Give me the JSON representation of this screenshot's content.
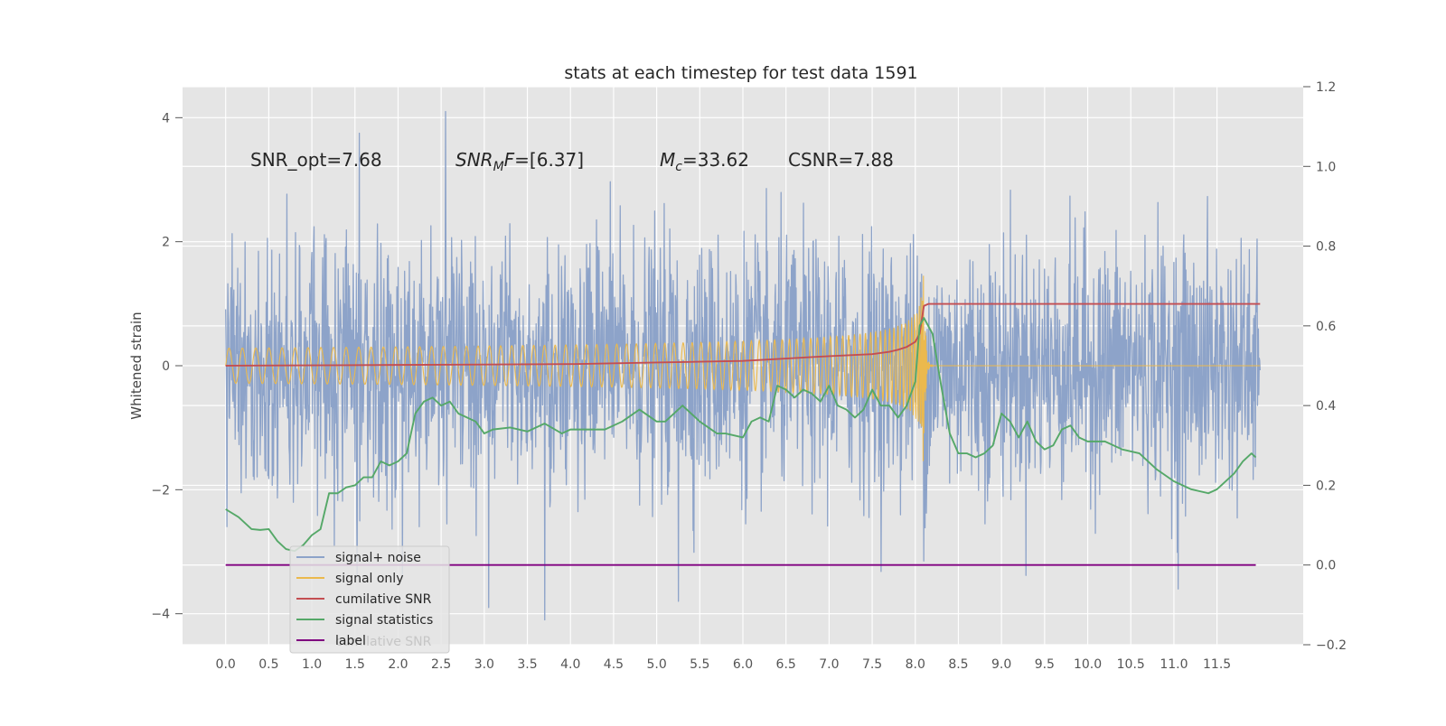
{
  "chart_data": {
    "type": "line",
    "title": "stats at each timestep for test data 1591",
    "ylabel": "Whitened strain",
    "xlabel": "",
    "grid": true,
    "legend_position": "lower-left",
    "xlim": [
      -0.5,
      12.5
    ],
    "ylim_left": [
      -4.5,
      4.5
    ],
    "ylim_right": [
      -0.2,
      1.2
    ],
    "x_ticks": [
      "0.0",
      "0.5",
      "1.0",
      "1.5",
      "2.0",
      "2.5",
      "3.0",
      "3.5",
      "4.0",
      "4.5",
      "5.0",
      "5.5",
      "6.0",
      "6.5",
      "7.0",
      "7.5",
      "8.0",
      "8.5",
      "9.0",
      "9.5",
      "10.0",
      "10.5",
      "11.0",
      "11.5"
    ],
    "y_ticks_left": [
      "−4",
      "−2",
      "0",
      "2",
      "4"
    ],
    "y_ticks_right": [
      "−0.2",
      "0.0",
      "0.2",
      "0.4",
      "0.6",
      "0.8",
      "1.0",
      "1.2"
    ],
    "annotations": {
      "snr_opt": "SNR_opt=7.68",
      "snr_mf_sym": "SNR",
      "snr_mf_sub": "M",
      "snr_mf_f": "F",
      "snr_mf_val": "=[6.37]",
      "mc_sym": "M",
      "mc_sub": "c",
      "mc_val": "=33.62",
      "csnr": "CSNR=7.88"
    },
    "series": [
      {
        "name": "signal+ noise",
        "axis": "left",
        "color": "#8da3c9",
        "kind": "noise",
        "x_range": [
          0.0,
          12.0
        ],
        "amplitude_std": 1.0,
        "peaks": [
          [
            1.55,
            3.75
          ],
          [
            2.55,
            4.1
          ],
          [
            3.7,
            -4.1
          ],
          [
            3.05,
            -3.9
          ],
          [
            5.25,
            -3.8
          ],
          [
            11.05,
            -3.6
          ],
          [
            8.1,
            -3.15
          ]
        ]
      },
      {
        "name": "signal only",
        "axis": "left",
        "color": "#ebb94d",
        "kind": "chirp",
        "merger_time": 8.1,
        "peak_amplitude": 1.9
      },
      {
        "name": "cumilative SNR",
        "axis": "right",
        "color": "#c44e52",
        "x": [
          0.0,
          1.0,
          2.0,
          3.0,
          4.0,
          5.0,
          5.5,
          6.0,
          6.5,
          7.0,
          7.5,
          7.7,
          7.8,
          7.9,
          8.0,
          8.05,
          8.1,
          8.15,
          9.0,
          10.0,
          11.0,
          12.0
        ],
        "values": [
          0.5,
          0.501,
          0.502,
          0.503,
          0.504,
          0.508,
          0.51,
          0.512,
          0.518,
          0.524,
          0.529,
          0.535,
          0.54,
          0.547,
          0.56,
          0.58,
          0.65,
          0.655,
          0.655,
          0.655,
          0.655,
          0.655
        ]
      },
      {
        "name": "signal statistics",
        "axis": "right",
        "color": "#55a868",
        "x": [
          0.0,
          0.15,
          0.3,
          0.4,
          0.5,
          0.6,
          0.7,
          0.8,
          0.9,
          1.0,
          1.1,
          1.2,
          1.3,
          1.4,
          1.5,
          1.6,
          1.7,
          1.8,
          1.9,
          2.0,
          2.1,
          2.2,
          2.3,
          2.4,
          2.5,
          2.6,
          2.7,
          2.8,
          2.9,
          3.0,
          3.1,
          3.3,
          3.5,
          3.7,
          3.9,
          4.0,
          4.2,
          4.4,
          4.6,
          4.8,
          5.0,
          5.1,
          5.3,
          5.5,
          5.7,
          5.8,
          6.0,
          6.1,
          6.2,
          6.3,
          6.4,
          6.5,
          6.6,
          6.7,
          6.8,
          6.9,
          7.0,
          7.1,
          7.2,
          7.3,
          7.4,
          7.5,
          7.6,
          7.7,
          7.8,
          7.9,
          8.0,
          8.05,
          8.1,
          8.2,
          8.3,
          8.4,
          8.5,
          8.6,
          8.7,
          8.8,
          8.9,
          9.0,
          9.1,
          9.2,
          9.3,
          9.4,
          9.5,
          9.6,
          9.7,
          9.8,
          9.9,
          10.0,
          10.2,
          10.4,
          10.6,
          10.8,
          11.0,
          11.2,
          11.4,
          11.5,
          11.6,
          11.7,
          11.8,
          11.9,
          11.95
        ],
        "values": [
          0.14,
          0.12,
          0.09,
          0.088,
          0.09,
          0.06,
          0.04,
          0.035,
          0.05,
          0.075,
          0.09,
          0.18,
          0.18,
          0.195,
          0.2,
          0.22,
          0.22,
          0.26,
          0.25,
          0.26,
          0.28,
          0.38,
          0.41,
          0.42,
          0.4,
          0.41,
          0.38,
          0.37,
          0.36,
          0.33,
          0.34,
          0.345,
          0.335,
          0.355,
          0.33,
          0.34,
          0.34,
          0.34,
          0.36,
          0.39,
          0.36,
          0.36,
          0.4,
          0.36,
          0.33,
          0.33,
          0.32,
          0.36,
          0.37,
          0.36,
          0.45,
          0.44,
          0.42,
          0.44,
          0.43,
          0.41,
          0.45,
          0.4,
          0.39,
          0.37,
          0.39,
          0.44,
          0.4,
          0.4,
          0.37,
          0.4,
          0.46,
          0.6,
          0.62,
          0.58,
          0.45,
          0.33,
          0.28,
          0.28,
          0.27,
          0.28,
          0.3,
          0.38,
          0.36,
          0.32,
          0.36,
          0.31,
          0.29,
          0.3,
          0.34,
          0.35,
          0.32,
          0.31,
          0.31,
          0.29,
          0.28,
          0.24,
          0.21,
          0.19,
          0.18,
          0.19,
          0.21,
          0.23,
          0.26,
          0.28,
          0.27
        ]
      },
      {
        "name": "label",
        "axis": "right",
        "color": "#800080",
        "x": [
          0.0,
          11.95
        ],
        "values": [
          0.0,
          0.0
        ]
      }
    ],
    "legend_ghost_label": "cumilative SNR"
  },
  "colors": {
    "plot_background": "#e5e5e5",
    "grid": "#ffffff",
    "legend_background": "#e5e5e5",
    "legend_border": "#cccccc"
  }
}
